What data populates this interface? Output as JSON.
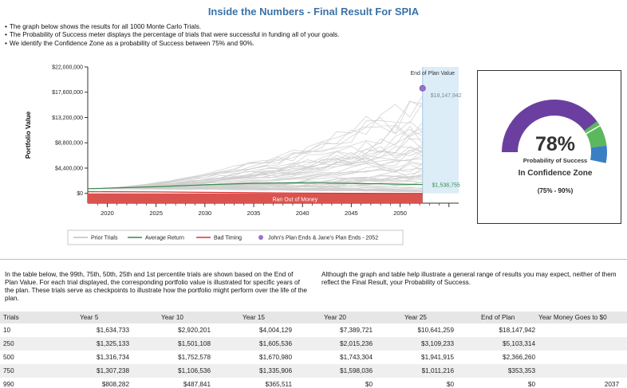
{
  "title": "Inside the Numbers - Final Result For SPIA",
  "intro": [
    "The graph below shows the results for all 1000 Monte Carlo Trials.",
    "The Probability of Success meter displays the percentage of trials that were successful in funding all of your goals.",
    "We identify the Confidence Zone as a probability of Success between 75% and 90%."
  ],
  "chart_data": {
    "type": "line",
    "ylabel": "Portfolio Value",
    "y_ticks": [
      "$22,000,000",
      "$17,600,000",
      "$13,200,000",
      "$8,800,000",
      "$4,400,000",
      "$0"
    ],
    "y_tick_values": [
      22000000,
      17600000,
      13200000,
      8800000,
      4400000,
      0
    ],
    "x_ticks": [
      "2020",
      "2025",
      "2030",
      "2035",
      "2040",
      "2045",
      "2050"
    ],
    "x_tick_values": [
      2020,
      2025,
      2030,
      2035,
      2040,
      2045,
      2050
    ],
    "xlim": [
      2018,
      2056
    ],
    "ylim": [
      -1700000,
      22000000
    ],
    "end_of_plan_label": "End of Plan Value",
    "end_value_label": "$18,147,942",
    "end_value": 18147942,
    "average_value_label": "$1,538,755",
    "average_end_value": 1538755,
    "ran_out_label": "Ran Out of Money",
    "plan_end_year": 2052.3,
    "series": [
      {
        "name": "Prior Trials",
        "color": "#cfcfcf"
      },
      {
        "name": "Average Return",
        "color": "#3a8a4a"
      },
      {
        "name": "Bad Timing",
        "color": "#e03030"
      }
    ],
    "average_return": {
      "x": [
        2018,
        2025,
        2030,
        2035,
        2040,
        2045,
        2052.3
      ],
      "y": [
        820000,
        1150000,
        1500000,
        1750000,
        1850000,
        1750000,
        1538755
      ]
    },
    "bad_timing": {
      "x": [
        2018,
        2025,
        2030,
        2035,
        2040,
        2045,
        2050,
        2052.3
      ],
      "y": [
        300000,
        250000,
        180000,
        120000,
        60000,
        20000,
        0,
        0
      ]
    },
    "legend": {
      "prior": "Prior Trials",
      "average": "Average Return",
      "bad": "Bad Timing",
      "marker": "John's Plan Ends & Jane's Plan Ends - 2052"
    },
    "legend_position": "bottom"
  },
  "gauge": {
    "value": "78%",
    "value_num": 78,
    "label": "Probability of Success",
    "zone_label": "In Confidence Zone",
    "zone_range": "(75% - 90%)",
    "colors": {
      "fill": "#6b3fa0",
      "zone": "#5cb85c",
      "high": "#3a7fc4",
      "empty": "#f4f4f4"
    }
  },
  "para_left": "In the table below, the 99th, 75th, 50th, 25th and 1st percentile trials are shown based on the End of Plan Value. For each trial displayed, the corresponding portfolio value is illustrated for specific years of the plan. These trials serve as checkpoints to illustrate how the portfolio might perform over the life of the plan.",
  "para_right": "Although the graph and table help illustrate a general range of results you may expect, neither of them reflect the Final Result, your Probability of Success.",
  "table": {
    "headers": [
      "Trials",
      "Year 5",
      "Year 10",
      "Year 15",
      "Year 20",
      "Year 25",
      "End of Plan",
      "Year Money Goes to $0"
    ],
    "rows": [
      [
        "10",
        "$1,634,733",
        "$2,920,201",
        "$4,004,129",
        "$7,389,721",
        "$10,641,259",
        "$18,147,942",
        ""
      ],
      [
        "250",
        "$1,325,133",
        "$1,501,108",
        "$1,605,536",
        "$2,015,236",
        "$3,109,233",
        "$5,103,314",
        ""
      ],
      [
        "500",
        "$1,316,734",
        "$1,752,578",
        "$1,670,980",
        "$1,743,304",
        "$1,941,915",
        "$2,366,260",
        ""
      ],
      [
        "750",
        "$1,307,238",
        "$1,106,536",
        "$1,335,906",
        "$1,598,036",
        "$1,011,216",
        "$353,353",
        ""
      ],
      [
        "990",
        "$808,282",
        "$487,841",
        "$365,511",
        "$0",
        "$0",
        "$0",
        "2037"
      ]
    ]
  }
}
